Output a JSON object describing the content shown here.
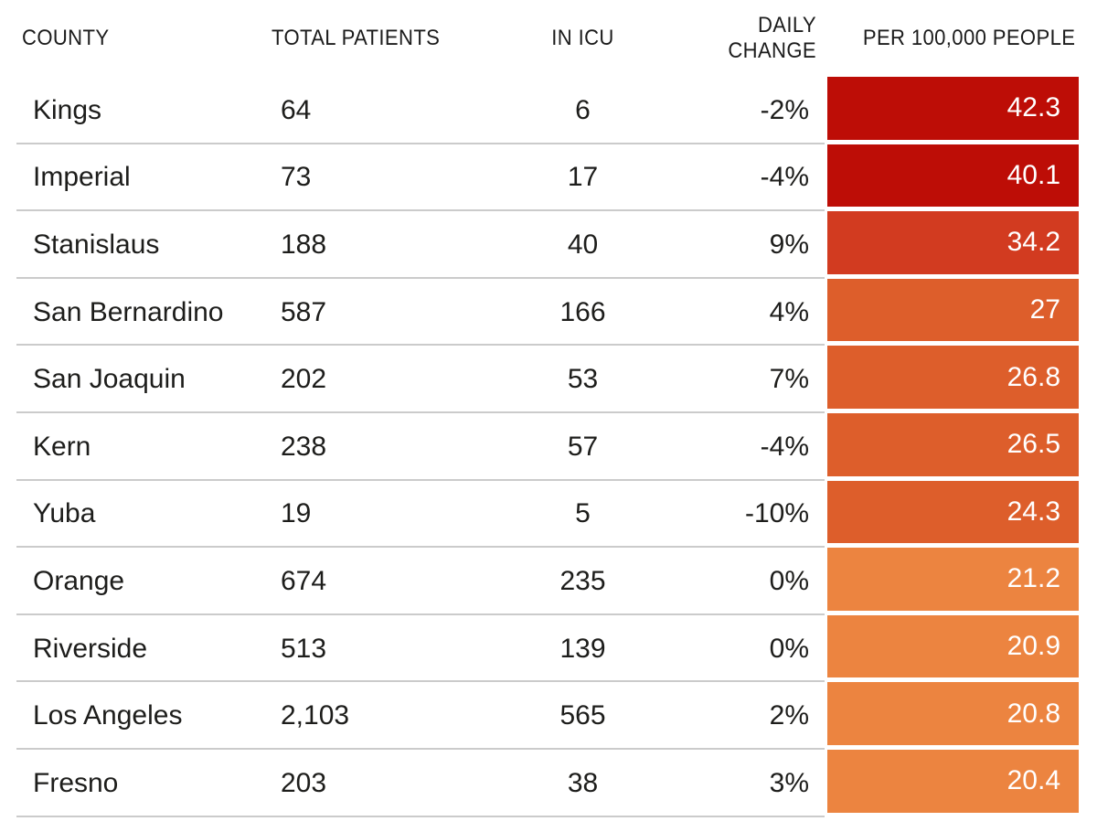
{
  "table": {
    "columns": [
      {
        "label": "COUNTY"
      },
      {
        "label": "TOTAL PATIENTS"
      },
      {
        "label": "IN ICU"
      },
      {
        "label": "DAILY CHANGE"
      },
      {
        "label": "PER 100,000 PEOPLE"
      }
    ],
    "rows": [
      {
        "county": "Kings",
        "total_patients": "64",
        "in_icu": "6",
        "daily_change": "-2%",
        "per_100k": "42.3",
        "heat_color": "#bd0d06"
      },
      {
        "county": "Imperial",
        "total_patients": "73",
        "in_icu": "17",
        "daily_change": "-4%",
        "per_100k": "40.1",
        "heat_color": "#bd0d06"
      },
      {
        "county": "Stanislaus",
        "total_patients": "188",
        "in_icu": "40",
        "daily_change": "9%",
        "per_100k": "34.2",
        "heat_color": "#d23b20"
      },
      {
        "county": "San Bernardino",
        "total_patients": "587",
        "in_icu": "166",
        "daily_change": "4%",
        "per_100k": "27",
        "heat_color": "#dd5e2b"
      },
      {
        "county": "San Joaquin",
        "total_patients": "202",
        "in_icu": "53",
        "daily_change": "7%",
        "per_100k": "26.8",
        "heat_color": "#dd5e2b"
      },
      {
        "county": "Kern",
        "total_patients": "238",
        "in_icu": "57",
        "daily_change": "-4%",
        "per_100k": "26.5",
        "heat_color": "#dd5e2b"
      },
      {
        "county": "Yuba",
        "total_patients": "19",
        "in_icu": "5",
        "daily_change": "-10%",
        "per_100k": "24.3",
        "heat_color": "#dd5e2b"
      },
      {
        "county": "Orange",
        "total_patients": "674",
        "in_icu": "235",
        "daily_change": "0%",
        "per_100k": "21.2",
        "heat_color": "#ec8440"
      },
      {
        "county": "Riverside",
        "total_patients": "513",
        "in_icu": "139",
        "daily_change": "0%",
        "per_100k": "20.9",
        "heat_color": "#ec8440"
      },
      {
        "county": "Los Angeles",
        "total_patients": "2,103",
        "in_icu": "565",
        "daily_change": "2%",
        "per_100k": "20.8",
        "heat_color": "#ec8440"
      },
      {
        "county": "Fresno",
        "total_patients": "203",
        "in_icu": "38",
        "daily_change": "3%",
        "per_100k": "20.4",
        "heat_color": "#ec8440"
      }
    ]
  },
  "chart_data": {
    "type": "table",
    "columns": [
      "COUNTY",
      "TOTAL PATIENTS",
      "IN ICU",
      "DAILY CHANGE",
      "PER 100,000 PEOPLE"
    ],
    "rows": [
      [
        "Kings",
        64,
        6,
        "-2%",
        42.3
      ],
      [
        "Imperial",
        73,
        17,
        "-4%",
        40.1
      ],
      [
        "Stanislaus",
        188,
        40,
        "9%",
        34.2
      ],
      [
        "San Bernardino",
        587,
        166,
        "4%",
        27
      ],
      [
        "San Joaquin",
        202,
        53,
        "7%",
        26.8
      ],
      [
        "Kern",
        238,
        57,
        "-4%",
        26.5
      ],
      [
        "Yuba",
        19,
        5,
        "-10%",
        24.3
      ],
      [
        "Orange",
        674,
        235,
        "0%",
        21.2
      ],
      [
        "Riverside",
        513,
        139,
        "0%",
        20.9
      ],
      [
        "Los Angeles",
        2103,
        565,
        "2%",
        20.8
      ],
      [
        "Fresno",
        203,
        38,
        "3%",
        20.4
      ]
    ],
    "heatmap_column": "PER 100,000 PEOPLE",
    "heat_scale": [
      {
        "range": "40+",
        "color": "#bd0d06"
      },
      {
        "range": "30-40",
        "color": "#d23b20"
      },
      {
        "range": "24-30",
        "color": "#dd5e2b"
      },
      {
        "range": "20-24",
        "color": "#ec8440"
      }
    ],
    "layout": {
      "grid": "off",
      "separator_color": "#cbcbcb",
      "text_color": "#1d1d1b",
      "heat_text_color": "#ffffff"
    }
  }
}
